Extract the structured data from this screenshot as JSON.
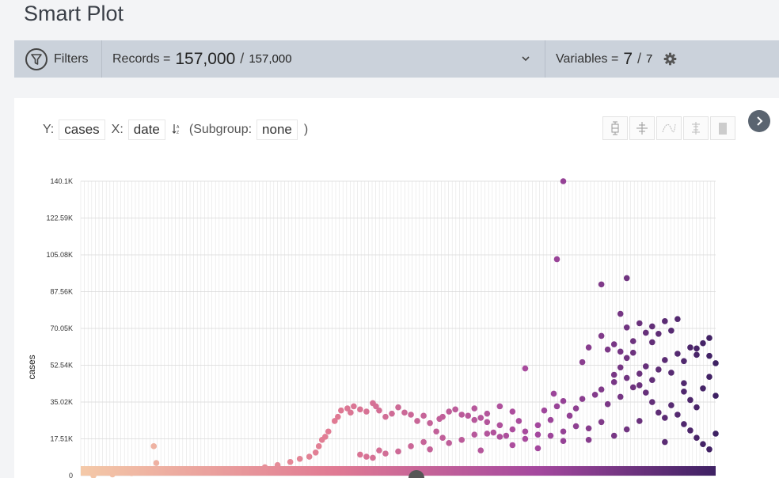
{
  "page": {
    "title": "Smart Plot"
  },
  "toolbar": {
    "filters_label": "Filters",
    "records_label": "Records =",
    "records_shown": "157,000",
    "records_total": "157,000",
    "variables_label": "Variables =",
    "variables_shown": "7",
    "variables_total": "7",
    "separator": "/"
  },
  "controls": {
    "y_label": "Y:",
    "y_value": "cases",
    "x_label": "X:",
    "x_value": "date",
    "subgroup_label": "(Subgroup:",
    "subgroup_value": "none",
    "subgroup_close": ")"
  },
  "colors": {
    "gradient_start": "#f4c9a8",
    "gradient_mid1": "#e07a93",
    "gradient_mid2": "#a4489e",
    "gradient_end": "#3e2163",
    "toolbar_bg": "#cbd2db"
  },
  "icons": [
    "funnel-icon",
    "chevron-down-icon",
    "gear-icon",
    "sort-icon",
    "box-plot-icon",
    "spread-icon",
    "smooth-icon",
    "range-icon",
    "bar-icon",
    "chevron-right-icon"
  ],
  "chart_data": {
    "type": "scatter",
    "title": "",
    "xlabel": "",
    "ylabel": "cases",
    "ylim": [
      0,
      140100
    ],
    "yticks": [
      "0",
      "17.51K",
      "35.02K",
      "52.54K",
      "70.05K",
      "87.56K",
      "105.08K",
      "122.59K",
      "140.1K"
    ],
    "ytick_values": [
      0,
      17510,
      35020,
      52540,
      70050,
      87560,
      105080,
      122590,
      140100
    ],
    "grid": true,
    "x_note": "date axis (tick labels not visible)",
    "points": [
      [
        0.02,
        0
      ],
      [
        0.05,
        600
      ],
      [
        0.08,
        1200
      ],
      [
        0.11,
        1500
      ],
      [
        0.14,
        2000
      ],
      [
        0.17,
        2200
      ],
      [
        0.2,
        1800
      ],
      [
        0.23,
        2500
      ],
      [
        0.115,
        14000
      ],
      [
        0.119,
        6000
      ],
      [
        0.16,
        1800
      ],
      [
        0.26,
        3000
      ],
      [
        0.29,
        4000
      ],
      [
        0.31,
        5000
      ],
      [
        0.33,
        6500
      ],
      [
        0.345,
        8000
      ],
      [
        0.36,
        9000
      ],
      [
        0.37,
        11000
      ],
      [
        0.375,
        14000
      ],
      [
        0.38,
        17000
      ],
      [
        0.385,
        18500
      ],
      [
        0.39,
        21000
      ],
      [
        0.4,
        26000
      ],
      [
        0.405,
        28000
      ],
      [
        0.41,
        31000
      ],
      [
        0.42,
        32000
      ],
      [
        0.425,
        30000
      ],
      [
        0.43,
        33000
      ],
      [
        0.44,
        31500
      ],
      [
        0.45,
        30500
      ],
      [
        0.46,
        34500
      ],
      [
        0.465,
        33000
      ],
      [
        0.47,
        31000
      ],
      [
        0.48,
        28000
      ],
      [
        0.49,
        29500
      ],
      [
        0.5,
        32500
      ],
      [
        0.51,
        30000
      ],
      [
        0.52,
        29000
      ],
      [
        0.53,
        26000
      ],
      [
        0.54,
        28500
      ],
      [
        0.55,
        25000
      ],
      [
        0.56,
        21000
      ],
      [
        0.565,
        27000
      ],
      [
        0.57,
        28000
      ],
      [
        0.58,
        30500
      ],
      [
        0.59,
        31500
      ],
      [
        0.6,
        29000
      ],
      [
        0.61,
        28500
      ],
      [
        0.62,
        26500
      ],
      [
        0.63,
        27500
      ],
      [
        0.64,
        25500
      ],
      [
        0.65,
        20500
      ],
      [
        0.66,
        24000
      ],
      [
        0.67,
        19000
      ],
      [
        0.68,
        22000
      ],
      [
        0.69,
        26000
      ],
      [
        0.7,
        21000
      ],
      [
        0.44,
        10000
      ],
      [
        0.45,
        9000
      ],
      [
        0.46,
        8500
      ],
      [
        0.47,
        12000
      ],
      [
        0.48,
        10500
      ],
      [
        0.5,
        11500
      ],
      [
        0.52,
        14000
      ],
      [
        0.54,
        16000
      ],
      [
        0.55,
        12500
      ],
      [
        0.57,
        18000
      ],
      [
        0.58,
        15500
      ],
      [
        0.6,
        17000
      ],
      [
        0.62,
        19500
      ],
      [
        0.63,
        12000
      ],
      [
        0.64,
        20000
      ],
      [
        0.66,
        18500
      ],
      [
        0.68,
        14500
      ],
      [
        0.7,
        17500
      ],
      [
        0.72,
        13000
      ],
      [
        0.74,
        19000
      ],
      [
        0.76,
        16500
      ],
      [
        0.7,
        51000
      ],
      [
        0.75,
        103000
      ],
      [
        0.76,
        140100
      ],
      [
        0.745,
        39000
      ],
      [
        0.79,
        54000
      ],
      [
        0.82,
        91000
      ],
      [
        0.86,
        94000
      ],
      [
        0.72,
        24000
      ],
      [
        0.73,
        31000
      ],
      [
        0.75,
        33000
      ],
      [
        0.76,
        35500
      ],
      [
        0.77,
        28500
      ],
      [
        0.78,
        32000
      ],
      [
        0.79,
        36500
      ],
      [
        0.8,
        22500
      ],
      [
        0.81,
        38500
      ],
      [
        0.82,
        41000
      ],
      [
        0.83,
        34000
      ],
      [
        0.84,
        44500
      ],
      [
        0.85,
        37500
      ],
      [
        0.86,
        46500
      ],
      [
        0.87,
        42000
      ],
      [
        0.88,
        48500
      ],
      [
        0.89,
        52000
      ],
      [
        0.9,
        45500
      ],
      [
        0.91,
        50500
      ],
      [
        0.92,
        55000
      ],
      [
        0.93,
        49000
      ],
      [
        0.94,
        58000
      ],
      [
        0.95,
        54500
      ],
      [
        0.96,
        61000
      ],
      [
        0.97,
        57500
      ],
      [
        0.98,
        63000
      ],
      [
        0.99,
        65500
      ],
      [
        1.0,
        53500
      ],
      [
        0.8,
        61000
      ],
      [
        0.82,
        66500
      ],
      [
        0.83,
        60000
      ],
      [
        0.84,
        62500
      ],
      [
        0.85,
        59000
      ],
      [
        0.86,
        70500
      ],
      [
        0.87,
        64000
      ],
      [
        0.88,
        72500
      ],
      [
        0.89,
        68000
      ],
      [
        0.9,
        71000
      ],
      [
        0.91,
        67500
      ],
      [
        0.92,
        73500
      ],
      [
        0.93,
        69000
      ],
      [
        0.94,
        74500
      ],
      [
        0.84,
        48000
      ],
      [
        0.85,
        51500
      ],
      [
        0.86,
        56000
      ],
      [
        0.87,
        58500
      ],
      [
        0.88,
        43000
      ],
      [
        0.89,
        39500
      ],
      [
        0.9,
        35000
      ],
      [
        0.91,
        30000
      ],
      [
        0.92,
        27500
      ],
      [
        0.93,
        33500
      ],
      [
        0.94,
        29000
      ],
      [
        0.95,
        40000
      ],
      [
        0.96,
        36000
      ],
      [
        0.97,
        32500
      ],
      [
        0.98,
        41500
      ],
      [
        0.99,
        47000
      ],
      [
        1.0,
        38000
      ],
      [
        0.95,
        24500
      ],
      [
        0.96,
        21500
      ],
      [
        0.97,
        18000
      ],
      [
        0.98,
        15000
      ],
      [
        0.99,
        12500
      ],
      [
        1.0,
        20000
      ],
      [
        0.92,
        16000
      ],
      [
        0.88,
        26000
      ],
      [
        0.86,
        22000
      ],
      [
        0.84,
        19000
      ],
      [
        0.82,
        25500
      ],
      [
        0.8,
        17000
      ],
      [
        0.78,
        23500
      ],
      [
        0.76,
        21000
      ],
      [
        0.74,
        26500
      ],
      [
        0.72,
        19500
      ],
      [
        0.68,
        30500
      ],
      [
        0.66,
        33000
      ],
      [
        0.64,
        29500
      ],
      [
        0.62,
        32000
      ],
      [
        0.85,
        77000
      ],
      [
        0.9,
        63500
      ],
      [
        0.95,
        44000
      ],
      [
        0.97,
        60500
      ],
      [
        0.99,
        57000
      ]
    ]
  }
}
